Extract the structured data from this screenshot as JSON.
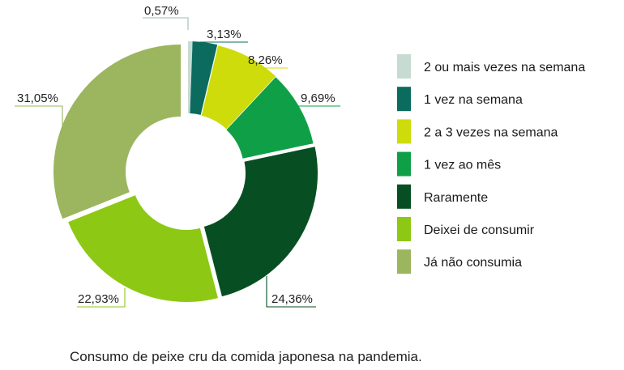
{
  "chart_data": {
    "type": "pie",
    "variant": "donut",
    "title": "",
    "caption": "Consumo de peixe cru da comida japonesa na pandemia.",
    "legend_position": "right",
    "slices": [
      {
        "label": "2 ou mais vezes na semana",
        "value": 0.57,
        "display": "0,57%",
        "color": "#c7dbd2"
      },
      {
        "label": "1 vez na semana",
        "value": 3.13,
        "display": "3,13%",
        "color": "#0a6b5e"
      },
      {
        "label": "2 a 3 vezes na semana",
        "value": 8.26,
        "display": "8,26%",
        "color": "#cddc0a"
      },
      {
        "label": "1 vez ao mês",
        "value": 9.69,
        "display": "9,69%",
        "color": "#0fa047"
      },
      {
        "label": "Raramente",
        "value": 24.36,
        "display": "24,36%",
        "color": "#074f22"
      },
      {
        "label": "Deixei de consumir",
        "value": 22.93,
        "display": "22,93%",
        "color": "#8cc814"
      },
      {
        "label": "Já não consumia",
        "value": 31.05,
        "display": "31,05%",
        "color": "#9cb55f"
      }
    ]
  }
}
